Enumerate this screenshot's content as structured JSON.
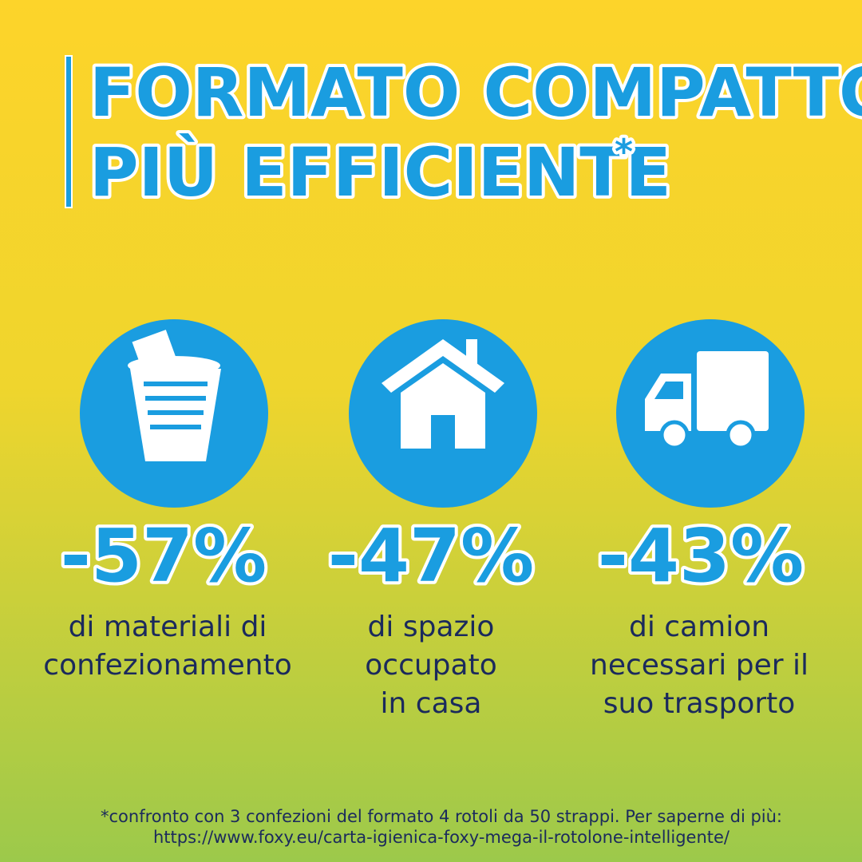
{
  "header": {
    "title_lines": [
      "FORMATO COMPATTO",
      "PIÙ EFFICIENTE"
    ],
    "asterisk": "*"
  },
  "items": [
    {
      "stat": "-57%",
      "lines": [
        "di materiali di",
        "confezionamento"
      ]
    },
    {
      "stat": "-47%",
      "lines": [
        "di spazio",
        "occupato",
        "in casa"
      ]
    },
    {
      "stat": "-43%",
      "lines": [
        "di camion",
        "necessari per il",
        "suo trasporto"
      ]
    }
  ],
  "footnote": {
    "lines": [
      "*confronto con 3 confezioni del formato 4 rotoli da 50 strappi. Per saperne di più:",
      "https://www.foxy.eu/carta-igienica-foxy-mega-il-rotolone-intelligente/"
    ]
  }
}
